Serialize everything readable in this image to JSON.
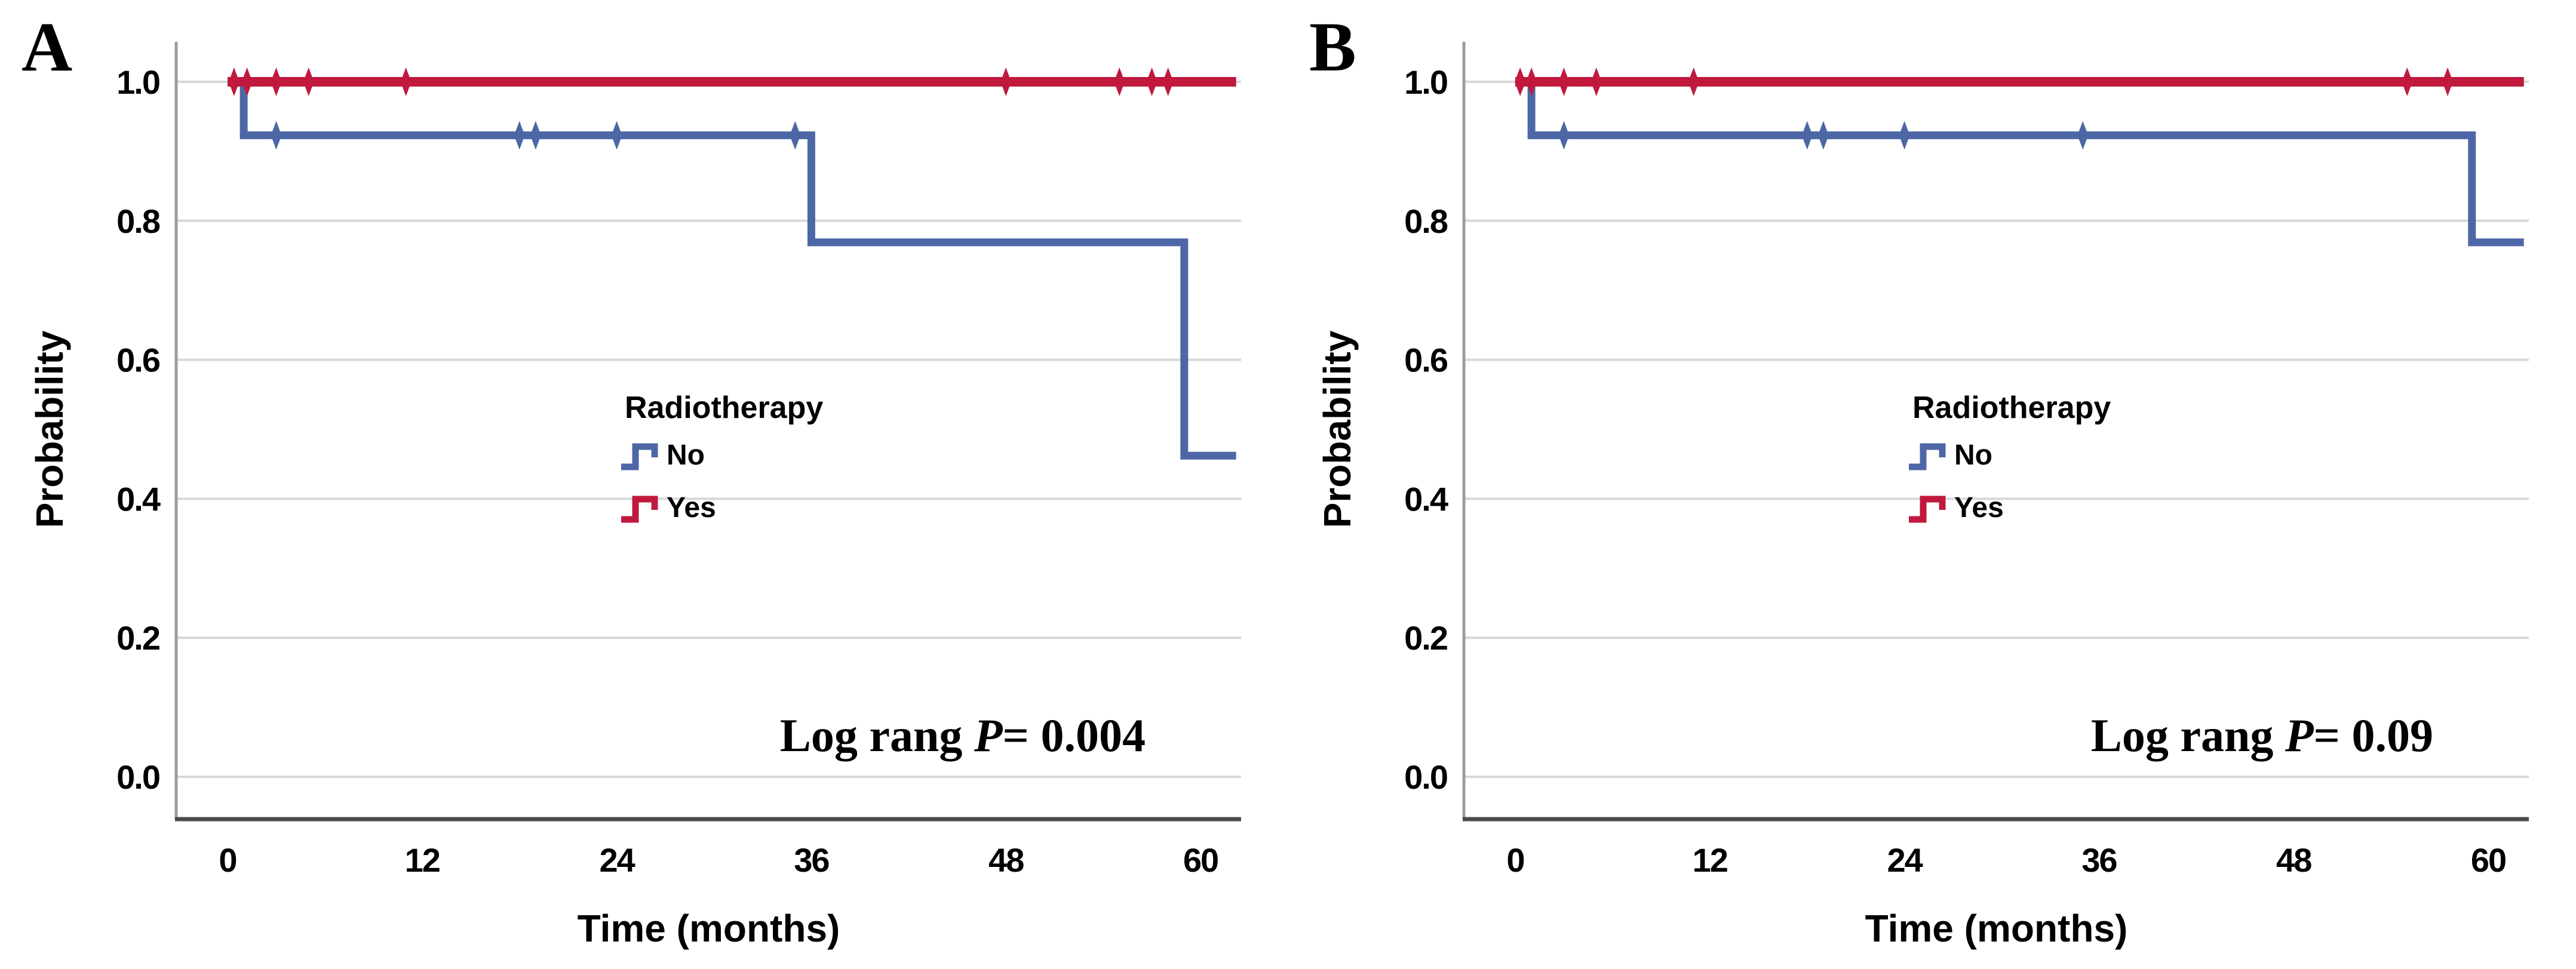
{
  "figure": {
    "colors": {
      "no_blue": "#4D67A6",
      "yes_red": "#C0193D",
      "gridline": "#D8D8D8",
      "y_axis_line": "#9C9C9C",
      "x_axis_line": "#4A4A4A",
      "text": "#000000",
      "background": "#FFFFFF"
    },
    "panels": [
      {
        "letter": "A",
        "ylabel": "Probability",
        "xlabel": "Time (months)",
        "ytick_labels": [
          "1.0",
          "0.8",
          "0.6",
          "0.4",
          "0.2",
          "0.0"
        ],
        "xtick_labels": [
          "0",
          "12",
          "24",
          "36",
          "48",
          "60"
        ],
        "legend": {
          "title": "Radiotherapy",
          "items": [
            {
              "label": "No",
              "color_key": "no_blue"
            },
            {
              "label": "Yes",
              "color_key": "yes_red"
            }
          ]
        },
        "annotation": {
          "prefix": "Log rang ",
          "p_symbol": "P",
          "equals_value": "= 0.004"
        }
      },
      {
        "letter": "B",
        "ylabel": "Probability",
        "xlabel": "Time (months)",
        "ytick_labels": [
          "1.0",
          "0.8",
          "0.6",
          "0.4",
          "0.2",
          "0.0"
        ],
        "xtick_labels": [
          "0",
          "12",
          "24",
          "36",
          "48",
          "60"
        ],
        "legend": {
          "title": "Radiotherapy",
          "items": [
            {
              "label": "No",
              "color_key": "no_blue"
            },
            {
              "label": "Yes",
              "color_key": "yes_red"
            }
          ]
        },
        "annotation": {
          "prefix": "Log rang ",
          "p_symbol": "P",
          "equals_value": "= 0.09"
        }
      }
    ]
  },
  "chart_data": [
    {
      "panel": "A",
      "type": "line",
      "subtype": "kaplan-meier-step",
      "title": "",
      "xlabel": "Time (months)",
      "ylabel": "Probability",
      "xlim": [
        -3.2,
        62.5
      ],
      "ylim": [
        -0.06,
        1.08
      ],
      "xticks": [
        0,
        12,
        24,
        36,
        48,
        60
      ],
      "yticks": [
        0.0,
        0.2,
        0.4,
        0.6,
        0.8,
        1.0
      ],
      "grid": true,
      "legend_position": "center",
      "annotation": "Log rang P= 0.004",
      "series": [
        {
          "name": "No",
          "color_key": "no_blue",
          "steps": [
            [
              0,
              1.0
            ],
            [
              1,
              1.0
            ],
            [
              1,
              0.923
            ],
            [
              36,
              0.923
            ],
            [
              36,
              0.769
            ],
            [
              59,
              0.769
            ],
            [
              59,
              0.462
            ],
            [
              62.2,
              0.462
            ]
          ],
          "censor_marks": [
            [
              3,
              0.923
            ],
            [
              18,
              0.923
            ],
            [
              19,
              0.923
            ],
            [
              24,
              0.923
            ],
            [
              35,
              0.923
            ]
          ]
        },
        {
          "name": "Yes",
          "color_key": "yes_red",
          "steps": [
            [
              0,
              1.0
            ],
            [
              62.2,
              1.0
            ]
          ],
          "censor_marks": [
            [
              0.4,
              1.0
            ],
            [
              1.2,
              1.0
            ],
            [
              3,
              1.0
            ],
            [
              5,
              1.0
            ],
            [
              11,
              1.0
            ],
            [
              48,
              1.0
            ],
            [
              55,
              1.0
            ],
            [
              57,
              1.0
            ],
            [
              58,
              1.0
            ]
          ]
        }
      ]
    },
    {
      "panel": "B",
      "type": "line",
      "subtype": "kaplan-meier-step",
      "title": "",
      "xlabel": "Time (months)",
      "ylabel": "Probability",
      "xlim": [
        -3.2,
        62.5
      ],
      "ylim": [
        -0.06,
        1.08
      ],
      "xticks": [
        0,
        12,
        24,
        36,
        48,
        60
      ],
      "yticks": [
        0.0,
        0.2,
        0.4,
        0.6,
        0.8,
        1.0
      ],
      "grid": true,
      "legend_position": "center",
      "annotation": "Log rang P= 0.09",
      "series": [
        {
          "name": "No",
          "color_key": "no_blue",
          "steps": [
            [
              0,
              1.0
            ],
            [
              1,
              1.0
            ],
            [
              1,
              0.923
            ],
            [
              59,
              0.923
            ],
            [
              59,
              0.769
            ],
            [
              62.2,
              0.769
            ]
          ],
          "censor_marks": [
            [
              3,
              0.923
            ],
            [
              18,
              0.923
            ],
            [
              19,
              0.923
            ],
            [
              24,
              0.923
            ],
            [
              35,
              0.923
            ]
          ]
        },
        {
          "name": "Yes",
          "color_key": "yes_red",
          "steps": [
            [
              0,
              1.0
            ],
            [
              62.2,
              1.0
            ]
          ],
          "censor_marks": [
            [
              0.3,
              1.0
            ],
            [
              1,
              1.0
            ],
            [
              3,
              1.0
            ],
            [
              5,
              1.0
            ],
            [
              11,
              1.0
            ],
            [
              55,
              1.0
            ],
            [
              57.5,
              1.0
            ]
          ]
        }
      ]
    }
  ]
}
